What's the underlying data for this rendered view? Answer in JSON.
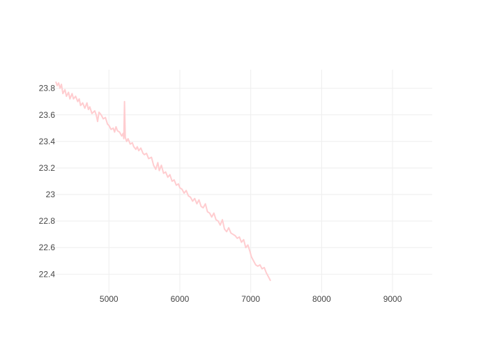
{
  "chart_data": {
    "type": "line",
    "title": "",
    "xlabel": "",
    "ylabel": "",
    "xlim": [
      4250,
      9560
    ],
    "ylim": [
      22.26,
      23.94
    ],
    "grid": true,
    "x_ticks": [
      5000,
      6000,
      7000,
      8000,
      9000
    ],
    "x_tick_labels": [
      "5000",
      "6000",
      "7000",
      "8000",
      "9000"
    ],
    "y_ticks": [
      22.4,
      22.6,
      22.8,
      23.0,
      23.2,
      23.4,
      23.6,
      23.8
    ],
    "y_tick_labels": [
      "22.4",
      "22.6",
      "22.8",
      "23",
      "23.2",
      "23.4",
      "23.6",
      "23.8"
    ],
    "colors": {
      "line": "#ffcdd0",
      "grid": "#eeeeee"
    },
    "series": [
      {
        "x": [
          4250,
          4270,
          4290,
          4310,
          4330,
          4350,
          4380,
          4400,
          4430,
          4450,
          4480,
          4500,
          4530,
          4560,
          4580,
          4600,
          4630,
          4660,
          4690,
          4710,
          4730,
          4760,
          4800,
          4820,
          4840,
          4860,
          4890,
          4920,
          4950,
          4980,
          5000,
          5030,
          5060,
          5080,
          5100,
          5120,
          5150,
          5180,
          5200,
          5210,
          5220,
          5230,
          5250,
          5270,
          5300,
          5330,
          5350,
          5380,
          5400,
          5420,
          5450,
          5480,
          5500,
          5530,
          5560,
          5600,
          5630,
          5660,
          5690,
          5710,
          5740,
          5770,
          5800,
          5830,
          5860,
          5890,
          5920,
          5950,
          5980,
          6000,
          6030,
          6060,
          6090,
          6120,
          6150,
          6180,
          6210,
          6240,
          6270,
          6300,
          6330,
          6360,
          6390,
          6420,
          6450,
          6480,
          6510,
          6540,
          6570,
          6600,
          6630,
          6660,
          6690,
          6720,
          6750,
          6780,
          6810,
          6840,
          6870,
          6900,
          6930,
          6960,
          6990,
          7010,
          7040,
          7070,
          7100,
          7130,
          7160,
          7190,
          7220,
          7250,
          7280
        ],
        "y": [
          23.85,
          23.82,
          23.84,
          23.8,
          23.83,
          23.76,
          23.79,
          23.74,
          23.77,
          23.72,
          23.76,
          23.72,
          23.74,
          23.7,
          23.72,
          23.67,
          23.69,
          23.65,
          23.69,
          23.64,
          23.66,
          23.61,
          23.63,
          23.6,
          23.55,
          23.62,
          23.6,
          23.57,
          23.58,
          23.53,
          23.52,
          23.49,
          23.5,
          23.47,
          23.51,
          23.48,
          23.47,
          23.44,
          23.46,
          23.42,
          23.7,
          23.43,
          23.4,
          23.42,
          23.38,
          23.39,
          23.36,
          23.34,
          23.36,
          23.33,
          23.35,
          23.31,
          23.3,
          23.31,
          23.27,
          23.28,
          23.22,
          23.19,
          23.24,
          23.18,
          23.22,
          23.16,
          23.17,
          23.13,
          23.15,
          23.1,
          23.11,
          23.07,
          23.08,
          23.05,
          23.04,
          23.01,
          23.03,
          22.99,
          22.98,
          22.95,
          22.97,
          22.93,
          22.96,
          22.91,
          22.9,
          22.93,
          22.87,
          22.86,
          22.83,
          22.86,
          22.81,
          22.8,
          22.77,
          22.81,
          22.74,
          22.72,
          22.75,
          22.71,
          22.7,
          22.69,
          22.67,
          22.68,
          22.64,
          22.66,
          22.6,
          22.62,
          22.57,
          22.53,
          22.5,
          22.47,
          22.46,
          22.47,
          22.44,
          22.45,
          22.41,
          22.38,
          22.35
        ]
      }
    ]
  }
}
